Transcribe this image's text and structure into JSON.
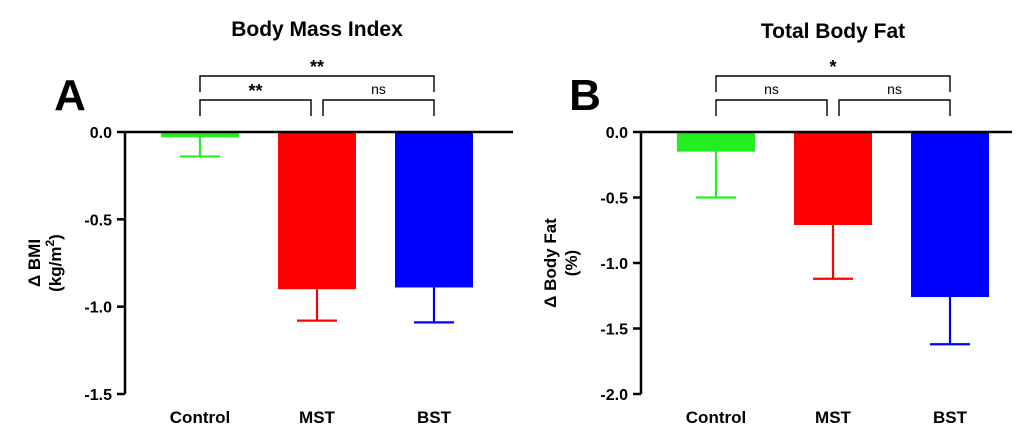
{
  "chart_data": [
    {
      "type": "bar",
      "panel": "A",
      "title": "Body Mass Index",
      "ylabel_line1": "Δ BMI",
      "ylabel_line2_pre": "(kg/m",
      "ylabel_sup": "2",
      "ylabel_line2_post": ")",
      "categories": [
        "Control",
        "MST",
        "BST"
      ],
      "values": [
        -0.03,
        -0.9,
        -0.89
      ],
      "errors": [
        0.11,
        0.18,
        0.2
      ],
      "colors": [
        "#22ee22",
        "#ff0000",
        "#0000ff"
      ],
      "ylim": [
        -1.5,
        0.0
      ],
      "yticks": [
        "0.0",
        "-0.5",
        "-1.0",
        "-1.5"
      ],
      "comparisons": [
        {
          "from": 0,
          "to": 1,
          "level": 1,
          "label": "**"
        },
        {
          "from": 1,
          "to": 2,
          "level": 1,
          "label": "ns"
        },
        {
          "from": 0,
          "to": 2,
          "level": 2,
          "label": "**"
        }
      ]
    },
    {
      "type": "bar",
      "panel": "B",
      "title": "Total Body Fat",
      "ylabel_line1": "Δ Body Fat",
      "ylabel_line2_pre": "(%)",
      "ylabel_sup": "",
      "ylabel_line2_post": "",
      "categories": [
        "Control",
        "MST",
        "BST"
      ],
      "values": [
        -0.15,
        -0.71,
        -1.26
      ],
      "errors": [
        0.35,
        0.41,
        0.36
      ],
      "colors": [
        "#22ee22",
        "#ff0000",
        "#0000ff"
      ],
      "ylim": [
        -2.0,
        0.0
      ],
      "yticks": [
        "0.0",
        "-0.5",
        "-1.0",
        "-1.5",
        "-2.0"
      ],
      "comparisons": [
        {
          "from": 0,
          "to": 1,
          "level": 1,
          "label": "ns"
        },
        {
          "from": 1,
          "to": 2,
          "level": 1,
          "label": "ns"
        },
        {
          "from": 0,
          "to": 2,
          "level": 2,
          "label": "*"
        }
      ]
    }
  ]
}
